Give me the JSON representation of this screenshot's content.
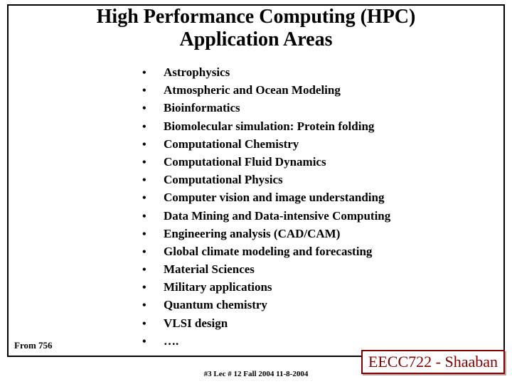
{
  "title_line1": "High Performance Computing (HPC)",
  "title_line2": "Application Areas",
  "bullets": [
    "Astrophysics",
    "Atmospheric and Ocean Modeling",
    "Bioinformatics",
    "Biomolecular simulation: Protein folding",
    "Computational Chemistry",
    "Computational Fluid Dynamics",
    "Computational Physics",
    "Computer vision and image understanding",
    "Data Mining and Data-intensive Computing",
    "Engineering analysis (CAD/CAM)",
    "Global climate modeling and forecasting",
    "Material Sciences",
    "Military applications",
    "Quantum chemistry",
    "VLSI design",
    "…."
  ],
  "from_note": "From 756",
  "footer_badge": "EECC722 - Shaaban",
  "footer_center": "#3   Lec # 12   Fall 2004  11-8-2004",
  "colors": {
    "text": "#000000",
    "badge_border": "#800000",
    "badge_text": "#800000",
    "badge_shadow": "#c0a0a0",
    "background": "#ffffff"
  },
  "fonts": {
    "family": "Times New Roman",
    "title_size": 28,
    "item_size": 17,
    "footer_size": 11,
    "badge_size": 22,
    "from_size": 13
  }
}
